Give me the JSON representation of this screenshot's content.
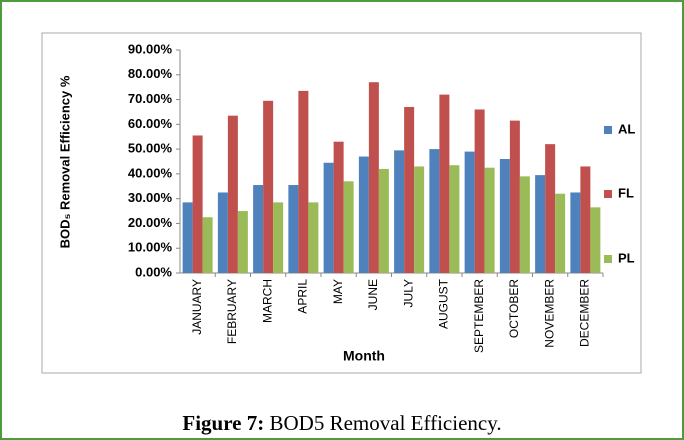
{
  "chart_data": {
    "type": "bar",
    "x_label": "Month",
    "y_label": "BOD₅ Removal Efficiency %",
    "categories": [
      "JANUARY",
      "FEBRUARY",
      "MARCH",
      "APRIL",
      "MAY",
      "JUNE",
      "JULY",
      "AUGUST",
      "SEPTEMBER",
      "OCTOBER",
      "NOVEMBER",
      "DECEMBER"
    ],
    "series": [
      {
        "name": "AL",
        "color": "#4f81bd",
        "values": [
          28.5,
          32.5,
          35.5,
          35.5,
          44.5,
          47,
          49.5,
          50,
          49,
          46,
          39.5,
          32.5
        ]
      },
      {
        "name": "FL",
        "color": "#c0504d",
        "values": [
          55.5,
          63.5,
          69.5,
          73.5,
          53,
          77,
          67,
          72,
          66,
          61.5,
          52,
          43
        ]
      },
      {
        "name": "PL",
        "color": "#9bbb59",
        "values": [
          22.5,
          25,
          28.5,
          28.5,
          37,
          42,
          43,
          43.5,
          42.5,
          39,
          32,
          26.5
        ]
      }
    ],
    "ylim": [
      0,
      90
    ],
    "yticks": [
      {
        "value": 0,
        "label": "0.00%"
      },
      {
        "value": 10,
        "label": "10.00%"
      },
      {
        "value": 20,
        "label": "20.00%"
      },
      {
        "value": 30,
        "label": "30.00%"
      },
      {
        "value": 40,
        "label": "40.00%"
      },
      {
        "value": 50,
        "label": "50.00%"
      },
      {
        "value": 60,
        "label": "60.00%"
      },
      {
        "value": 70,
        "label": "70.00%"
      },
      {
        "value": 80,
        "label": "80.00%"
      },
      {
        "value": 90,
        "label": "90.00%"
      }
    ],
    "grid": false,
    "legend": "right"
  },
  "caption": {
    "label": "Figure 7:",
    "text": "BOD5 Removal Efficiency."
  }
}
